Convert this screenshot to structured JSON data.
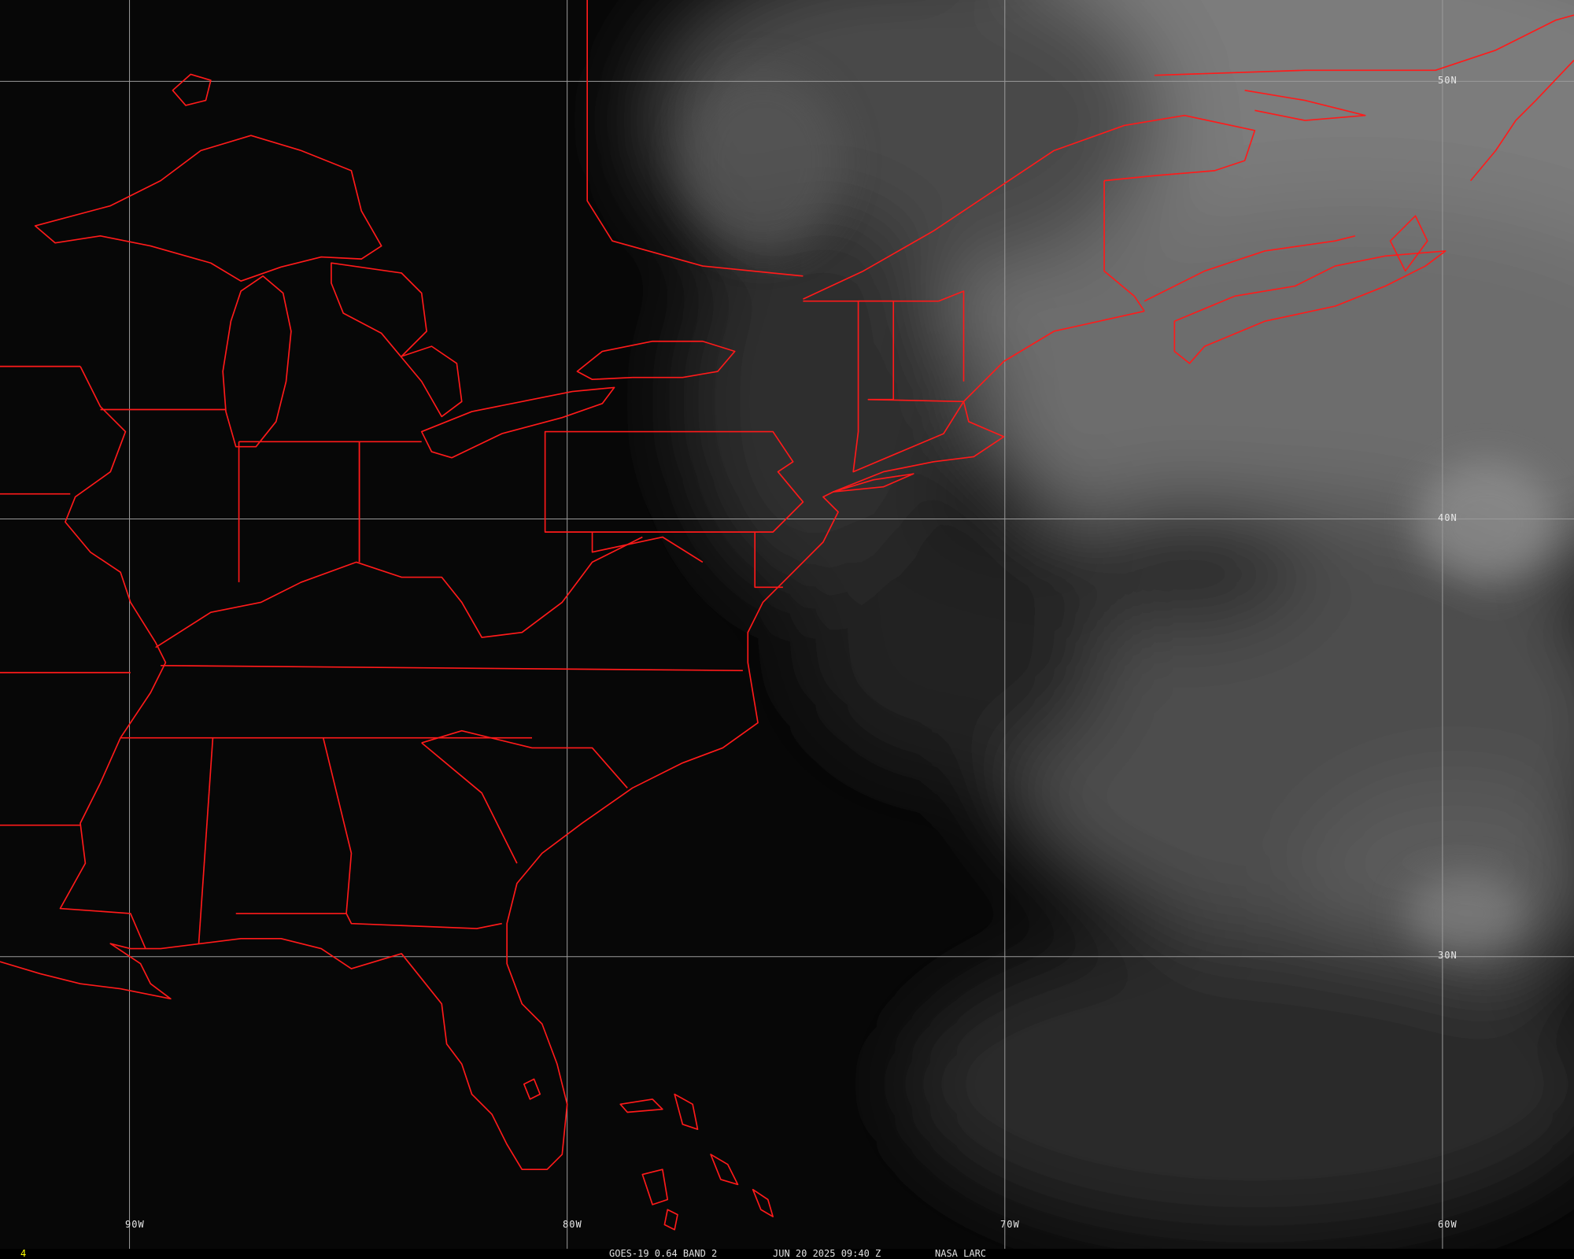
{
  "frame_number": "4",
  "caption": {
    "satellite": "GOES-19 0.64 BAND 2",
    "datetime": "JUN 20 2025 09:40 Z",
    "source": "NASA LARC"
  },
  "grid_labels": {
    "lon": [
      "90W",
      "80W",
      "70W",
      "60W"
    ],
    "lat": [
      "50N",
      "40N",
      "30N"
    ]
  },
  "colors": {
    "boundaries": "#ff1a1a",
    "grid": "#9a9a9a",
    "frame_number": "#ffff00",
    "caption_text": "#e0e0e0"
  }
}
